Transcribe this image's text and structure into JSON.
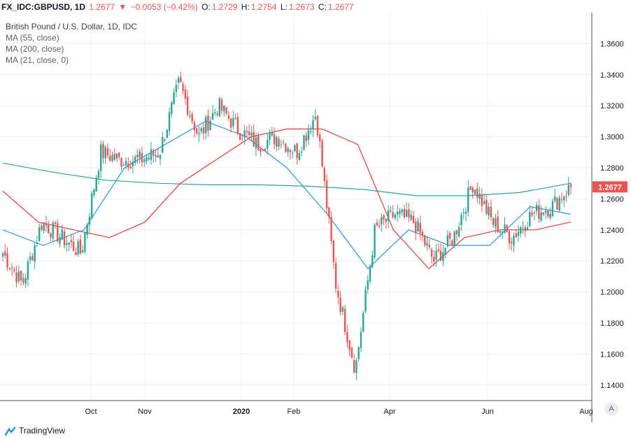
{
  "header": {
    "symbol": "FX_IDC:GBPUSD, 1D",
    "last": "1.2677",
    "change_arrow": "▼",
    "change": "−0.0053 (−0.42%)",
    "o_label": "O:",
    "o_value": "1.2729",
    "h_label": "H:",
    "h_value": "1.2754",
    "l_label": "L:",
    "l_value": "1.2673",
    "c_label": "C:",
    "c_value": "1.2677"
  },
  "legend": {
    "title": "British Pound / U.S. Dollar, 1D, IDC",
    "ma1": "MA (55, close)",
    "ma2": "MA (200, close)",
    "ma3": "MA (21, close, 0)"
  },
  "footer": {
    "brand": "TradingView",
    "auto_label": "A"
  },
  "colors": {
    "up": "#26a69a",
    "down": "#ef5350",
    "ma55": "#e53935",
    "ma200": "#26a69a",
    "ma21": "#2196f3",
    "price_tag": "#ef5350",
    "grid": "#e9f0f4"
  },
  "chart_data": {
    "type": "candlestick",
    "y_range": [
      1.13,
      1.38
    ],
    "y_ticks": [
      "1.3600",
      "1.3400",
      "1.3200",
      "1.3000",
      "1.2800",
      "1.2600",
      "1.2400",
      "1.2200",
      "1.2000",
      "1.1800",
      "1.1600",
      "1.1400"
    ],
    "x_ticks": [
      "Oct",
      "Nov",
      "2020",
      "Feb",
      "Apr",
      "Jun",
      "Aug"
    ],
    "last_price": "1.2677",
    "close_anchors": [
      {
        "month": "2019-09 start",
        "close": 1.225
      },
      {
        "month": "2019-09 early",
        "close": 1.205
      },
      {
        "month": "2019-09 mid",
        "close": 1.245
      },
      {
        "month": "2019-09 late",
        "close": 1.235
      },
      {
        "month": "2019-10 early",
        "close": 1.225
      },
      {
        "month": "2019-10 mid",
        "close": 1.29
      },
      {
        "month": "2019-10 late",
        "close": 1.285
      },
      {
        "month": "2019-11 early",
        "close": 1.285
      },
      {
        "month": "2019-11 late",
        "close": 1.29
      },
      {
        "month": "2019-12 mid",
        "close": 1.335
      },
      {
        "month": "2019-12 late",
        "close": 1.3
      },
      {
        "month": "2020-01 early",
        "close": 1.32
      },
      {
        "month": "2020-01 mid",
        "close": 1.305
      },
      {
        "month": "2020-02 early",
        "close": 1.295
      },
      {
        "month": "2020-02 mid",
        "close": 1.3
      },
      {
        "month": "2020-02 late",
        "close": 1.29
      },
      {
        "month": "2020-03 early",
        "close": 1.315
      },
      {
        "month": "2020-03 mid",
        "close": 1.205
      },
      {
        "month": "2020-03 low",
        "close": 1.15
      },
      {
        "month": "2020-03 end",
        "close": 1.24
      },
      {
        "month": "2020-04 mid",
        "close": 1.25
      },
      {
        "month": "2020-04 late",
        "close": 1.245
      },
      {
        "month": "2020-05 mid",
        "close": 1.22
      },
      {
        "month": "2020-05 late",
        "close": 1.235
      },
      {
        "month": "2020-06 early",
        "close": 1.27
      },
      {
        "month": "2020-06 mid",
        "close": 1.245
      },
      {
        "month": "2020-06 late",
        "close": 1.235
      },
      {
        "month": "2020-07 early",
        "close": 1.25
      },
      {
        "month": "2020-07 mid",
        "close": 1.255
      },
      {
        "month": "2020-07 end",
        "close": 1.2677
      }
    ],
    "ma55": [
      1.265,
      1.245,
      1.24,
      1.235,
      1.245,
      1.27,
      1.285,
      1.3,
      1.305,
      1.305,
      1.295,
      1.24,
      1.215,
      1.235,
      1.24,
      1.24,
      1.245
    ],
    "ma200": [
      1.283,
      1.277,
      1.272,
      1.27,
      1.269,
      1.269,
      1.268,
      1.266,
      1.262,
      1.262,
      1.264,
      1.27
    ],
    "ma21": [
      1.24,
      1.23,
      1.24,
      1.28,
      1.295,
      1.31,
      1.3,
      1.28,
      1.25,
      1.215,
      1.24,
      1.23,
      1.23,
      1.255,
      1.25
    ]
  }
}
